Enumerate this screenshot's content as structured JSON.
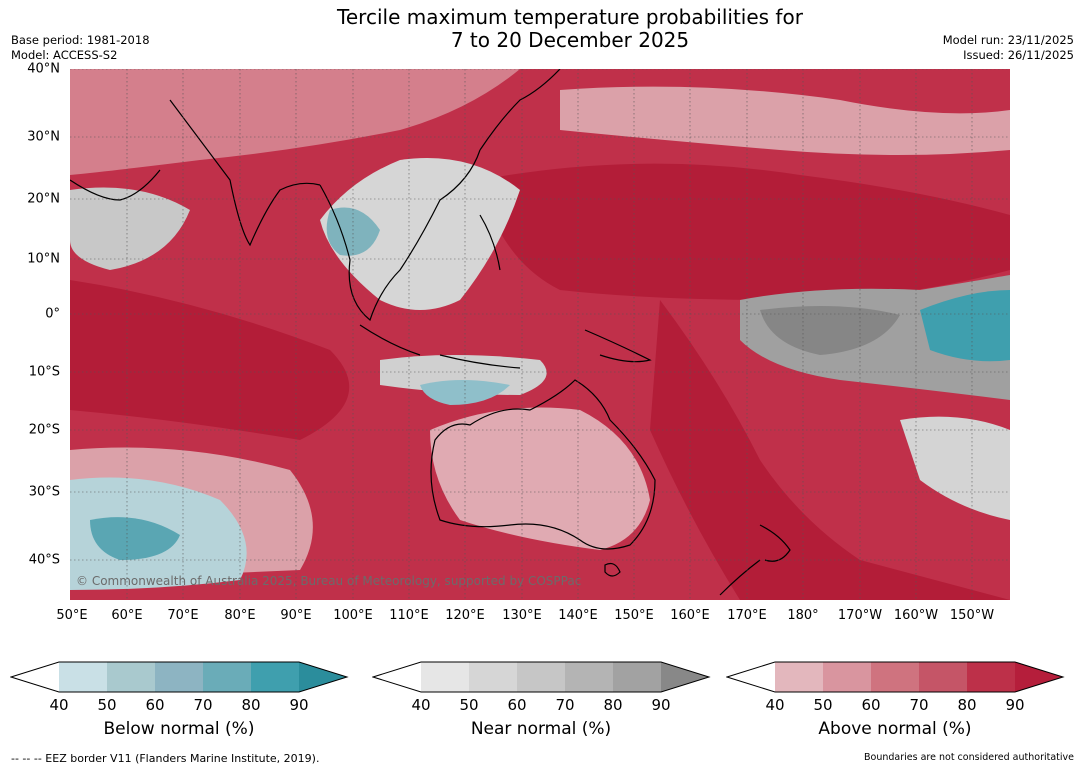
{
  "header": {
    "title_line1": "Tercile maximum temperature probabilities for",
    "title_line2": "7 to 20 December 2025",
    "base_period": "Base period: 1981-2018",
    "model": "Model: ACCESS-S2",
    "model_run": "Model run: 23/11/2025",
    "issued": "Issued: 26/11/2025"
  },
  "map": {
    "lat_labels": [
      "40°N",
      "30°N",
      "20°N",
      "10°N",
      "0°",
      "10°S",
      "20°S",
      "30°S",
      "40°S"
    ],
    "lon_labels": [
      "50°E",
      "60°E",
      "70°E",
      "80°E",
      "90°E",
      "100°E",
      "110°E",
      "120°E",
      "130°E",
      "140°E",
      "150°E",
      "160°E",
      "170°E",
      "180°",
      "170°W",
      "160°W",
      "150°W"
    ],
    "credit": "© Commonwealth of Australia 2025, Bureau of Meteorology, supported by COSPPac"
  },
  "colorbars": [
    {
      "title": "Below normal (%)",
      "ticks": [
        "40",
        "50",
        "60",
        "70",
        "80",
        "90"
      ],
      "colors": [
        "#ffffff",
        "#c9e0e6",
        "#a9c9ce",
        "#8db4c2",
        "#6aacb8",
        "#3f9fae",
        "#2b8d9c"
      ]
    },
    {
      "title": "Near normal (%)",
      "ticks": [
        "40",
        "50",
        "60",
        "70",
        "80",
        "90"
      ],
      "colors": [
        "#ffffff",
        "#e6e6e6",
        "#d6d6d6",
        "#c6c6c6",
        "#b4b4b4",
        "#a2a2a2",
        "#888888"
      ]
    },
    {
      "title": "Above normal (%)",
      "ticks": [
        "40",
        "50",
        "60",
        "70",
        "80",
        "90"
      ],
      "colors": [
        "#ffffff",
        "#e3b7bd",
        "#d9959f",
        "#cf737f",
        "#c55567",
        "#bd3049",
        "#b51e3b"
      ]
    }
  ],
  "footer": {
    "eez": "--  --  -- EEZ border V11 (Flanders Marine Institute, 2019).",
    "disclaimer": "Boundaries are not considered authoritative"
  }
}
